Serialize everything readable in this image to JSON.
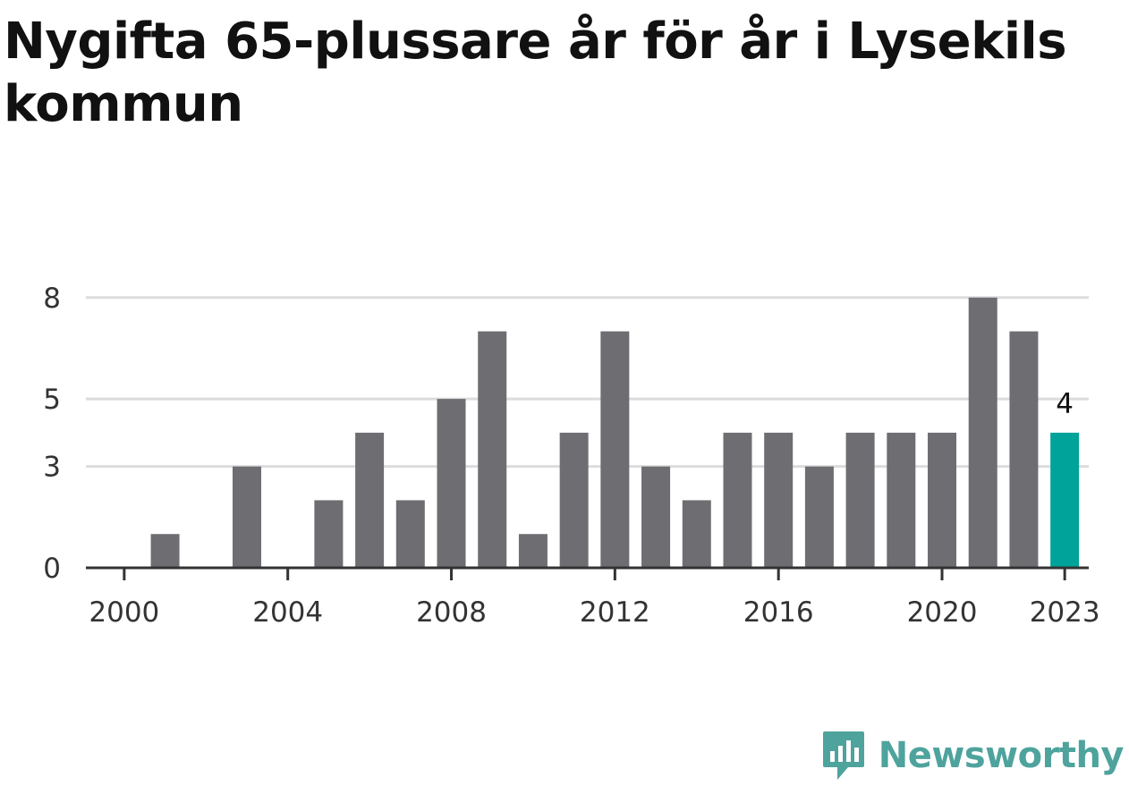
{
  "chart_data": {
    "type": "bar",
    "title": "Nygifta 65-plussare år för år i Lysekils kommun",
    "xlabel": "",
    "ylabel": "",
    "categories": [
      "2000",
      "2001",
      "2002",
      "2003",
      "2004",
      "2005",
      "2006",
      "2007",
      "2008",
      "2009",
      "2010",
      "2011",
      "2012",
      "2013",
      "2014",
      "2015",
      "2016",
      "2017",
      "2018",
      "2019",
      "2020",
      "2021",
      "2022",
      "2023"
    ],
    "values": [
      0,
      1,
      0,
      3,
      0,
      2,
      4,
      2,
      5,
      7,
      1,
      4,
      7,
      3,
      2,
      4,
      4,
      3,
      4,
      4,
      4,
      8,
      7,
      4
    ],
    "x_tick_labels": [
      "2000",
      "2004",
      "2008",
      "2012",
      "2016",
      "2020",
      "2023"
    ],
    "y_tick_labels": [
      "0",
      "3",
      "5",
      "8"
    ],
    "ylim": [
      0,
      9
    ],
    "grid": true,
    "highlight": {
      "category": "2023",
      "label": "4"
    },
    "colors": {
      "bar": "#6e6d72",
      "highlight": "#00a399",
      "grid": "#dcdcdc",
      "axis": "#333333"
    }
  },
  "branding": {
    "name": "Newsworthy",
    "icon": "newsworthy-logo-icon",
    "color": "#4ea39d"
  }
}
